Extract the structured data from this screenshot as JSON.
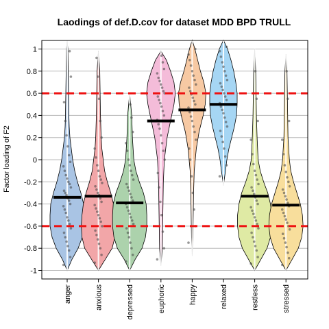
{
  "chart_data": {
    "type": "violin",
    "title": "Laodings of def.D.cov for dataset MDD BPD TRULL",
    "xlabel": "",
    "ylabel": "Factor loading of F2",
    "ylim": [
      -1.08,
      1.08
    ],
    "yticks": [
      -1,
      -0.8,
      -0.6,
      -0.4,
      -0.2,
      0,
      0.2,
      0.4,
      0.6,
      0.8,
      1
    ],
    "yticklabels": [
      "-1",
      "-0.8",
      "-0.6",
      "-0.4",
      "-0.2",
      "0",
      "0.2",
      "0.4",
      "0.6",
      "0.8",
      "1"
    ],
    "grid": true,
    "reference_lines": [
      0.6,
      -0.6
    ],
    "reference_line_color": "#ee1111",
    "categories": [
      "anger",
      "anxious",
      "depressed",
      "euphoric",
      "happy",
      "relaxed",
      "restless",
      "stressed"
    ],
    "colors": [
      "#a9c4e4",
      "#f2a6a8",
      "#acd2ac",
      "#f4bcd9",
      "#f7c9a3",
      "#a6d6f4",
      "#dfeaa4",
      "#f8de9c"
    ],
    "means": [
      -0.34,
      -0.33,
      -0.39,
      0.35,
      0.45,
      0.5,
      -0.33,
      -0.41
    ],
    "ranges": [
      [
        -1.0,
        1.08
      ],
      [
        -1.0,
        0.98
      ],
      [
        -1.0,
        0.6
      ],
      [
        -0.96,
        0.98
      ],
      [
        -0.87,
        1.08
      ],
      [
        -0.23,
        1.08
      ],
      [
        -1.0,
        1.0
      ],
      [
        -1.0,
        0.95
      ]
    ],
    "density": [
      [
        [
          -1.0,
          0
        ],
        [
          -0.9,
          7
        ],
        [
          -0.8,
          16
        ],
        [
          -0.7,
          22
        ],
        [
          -0.6,
          25
        ],
        [
          -0.5,
          25
        ],
        [
          -0.4,
          24
        ],
        [
          -0.3,
          20
        ],
        [
          -0.2,
          15
        ],
        [
          -0.1,
          11
        ],
        [
          0.0,
          8
        ],
        [
          0.1,
          6
        ],
        [
          0.2,
          4
        ],
        [
          0.3,
          3
        ],
        [
          0.4,
          2.5
        ],
        [
          0.6,
          2
        ],
        [
          0.8,
          1.5
        ],
        [
          1.0,
          1
        ],
        [
          1.08,
          0
        ]
      ],
      [
        [
          -1.0,
          0
        ],
        [
          -0.9,
          10
        ],
        [
          -0.8,
          20
        ],
        [
          -0.7,
          24
        ],
        [
          -0.6,
          25
        ],
        [
          -0.5,
          24
        ],
        [
          -0.4,
          22
        ],
        [
          -0.3,
          18
        ],
        [
          -0.2,
          13
        ],
        [
          -0.1,
          9
        ],
        [
          0.0,
          7
        ],
        [
          0.1,
          5
        ],
        [
          0.2,
          4
        ],
        [
          0.4,
          3
        ],
        [
          0.6,
          2.5
        ],
        [
          0.8,
          2
        ],
        [
          0.98,
          0
        ]
      ],
      [
        [
          -1.0,
          0
        ],
        [
          -0.9,
          8
        ],
        [
          -0.8,
          18
        ],
        [
          -0.7,
          23
        ],
        [
          -0.6,
          25
        ],
        [
          -0.5,
          25
        ],
        [
          -0.4,
          24
        ],
        [
          -0.3,
          20
        ],
        [
          -0.2,
          14
        ],
        [
          -0.1,
          9
        ],
        [
          0.0,
          6
        ],
        [
          0.2,
          4
        ],
        [
          0.4,
          3
        ],
        [
          0.6,
          0
        ]
      ],
      [
        [
          -0.96,
          0
        ],
        [
          -0.8,
          2
        ],
        [
          -0.6,
          2.5
        ],
        [
          -0.4,
          3
        ],
        [
          -0.2,
          3.5
        ],
        [
          0.0,
          5
        ],
        [
          0.2,
          9
        ],
        [
          0.35,
          14
        ],
        [
          0.5,
          19
        ],
        [
          0.6,
          21
        ],
        [
          0.7,
          19
        ],
        [
          0.8,
          14
        ],
        [
          0.9,
          8
        ],
        [
          0.98,
          0
        ]
      ],
      [
        [
          -0.87,
          0
        ],
        [
          -0.7,
          1
        ],
        [
          -0.5,
          1.5
        ],
        [
          -0.3,
          2
        ],
        [
          -0.1,
          3
        ],
        [
          0.1,
          6
        ],
        [
          0.25,
          10
        ],
        [
          0.4,
          16
        ],
        [
          0.5,
          19
        ],
        [
          0.6,
          20
        ],
        [
          0.7,
          17
        ],
        [
          0.8,
          12
        ],
        [
          0.9,
          8
        ],
        [
          1.0,
          4
        ],
        [
          1.08,
          0
        ]
      ],
      [
        [
          -0.23,
          0
        ],
        [
          -0.1,
          3
        ],
        [
          0.0,
          5
        ],
        [
          0.1,
          8
        ],
        [
          0.2,
          12
        ],
        [
          0.3,
          16
        ],
        [
          0.4,
          19
        ],
        [
          0.5,
          20
        ],
        [
          0.6,
          20
        ],
        [
          0.7,
          18
        ],
        [
          0.8,
          15
        ],
        [
          0.9,
          11
        ],
        [
          1.0,
          6
        ],
        [
          1.08,
          0
        ]
      ],
      [
        [
          -1.0,
          0
        ],
        [
          -0.9,
          9
        ],
        [
          -0.8,
          18
        ],
        [
          -0.7,
          23
        ],
        [
          -0.6,
          25
        ],
        [
          -0.5,
          25
        ],
        [
          -0.4,
          23
        ],
        [
          -0.3,
          19
        ],
        [
          -0.2,
          13
        ],
        [
          -0.1,
          8
        ],
        [
          0.0,
          5
        ],
        [
          0.2,
          3.5
        ],
        [
          0.4,
          2.5
        ],
        [
          0.6,
          2
        ],
        [
          0.8,
          1.5
        ],
        [
          1.0,
          0
        ]
      ],
      [
        [
          -1.0,
          0
        ],
        [
          -0.9,
          9
        ],
        [
          -0.8,
          18
        ],
        [
          -0.7,
          23
        ],
        [
          -0.6,
          25
        ],
        [
          -0.5,
          24
        ],
        [
          -0.4,
          21
        ],
        [
          -0.3,
          16
        ],
        [
          -0.2,
          11
        ],
        [
          -0.1,
          7
        ],
        [
          0.0,
          5
        ],
        [
          0.2,
          3
        ],
        [
          0.4,
          2.5
        ],
        [
          0.6,
          2
        ],
        [
          0.8,
          1.5
        ],
        [
          0.95,
          0
        ]
      ]
    ],
    "points": [
      [
        -0.95,
        -0.88,
        -0.82,
        -0.78,
        -0.74,
        -0.7,
        -0.66,
        -0.62,
        -0.58,
        -0.55,
        -0.52,
        -0.48,
        -0.45,
        -0.42,
        -0.4,
        -0.37,
        -0.35,
        -0.32,
        -0.3,
        -0.28,
        -0.25,
        -0.22,
        -0.2,
        -0.17,
        -0.14,
        -0.1,
        -0.06,
        -0.02,
        0.04,
        0.12,
        0.22,
        0.35,
        0.52,
        0.75,
        0.98
      ],
      [
        -0.93,
        -0.86,
        -0.8,
        -0.76,
        -0.72,
        -0.68,
        -0.64,
        -0.6,
        -0.56,
        -0.53,
        -0.5,
        -0.47,
        -0.44,
        -0.41,
        -0.38,
        -0.35,
        -0.32,
        -0.3,
        -0.27,
        -0.24,
        -0.21,
        -0.18,
        -0.15,
        -0.1,
        -0.05,
        0.02,
        0.1,
        0.2,
        0.35,
        0.55,
        0.75,
        0.92
      ],
      [
        -0.92,
        -0.86,
        -0.8,
        -0.75,
        -0.7,
        -0.66,
        -0.62,
        -0.58,
        -0.55,
        -0.52,
        -0.49,
        -0.46,
        -0.43,
        -0.4,
        -0.37,
        -0.34,
        -0.31,
        -0.28,
        -0.25,
        -0.22,
        -0.18,
        -0.14,
        -0.1,
        -0.05,
        0.0,
        0.08,
        0.15,
        0.25,
        0.38,
        0.5
      ],
      [
        -0.9,
        -0.8,
        -0.65,
        -0.5,
        -0.38,
        -0.25,
        -0.12,
        0.0,
        0.08,
        0.15,
        0.22,
        0.28,
        0.32,
        0.36,
        0.4,
        0.44,
        0.48,
        0.51,
        0.54,
        0.57,
        0.6,
        0.62,
        0.65,
        0.68,
        0.71,
        0.74,
        0.78,
        0.82,
        0.88,
        0.94
      ],
      [
        -0.75,
        -0.6,
        -0.45,
        -0.3,
        -0.15,
        0.0,
        0.1,
        0.18,
        0.25,
        0.3,
        0.35,
        0.39,
        0.43,
        0.47,
        0.5,
        0.53,
        0.56,
        0.59,
        0.62,
        0.65,
        0.68,
        0.72,
        0.76,
        0.8,
        0.85,
        0.9,
        0.95,
        1.0
      ],
      [
        -0.15,
        -0.05,
        0.03,
        0.1,
        0.16,
        0.21,
        0.26,
        0.3,
        0.34,
        0.38,
        0.42,
        0.45,
        0.48,
        0.51,
        0.54,
        0.57,
        0.6,
        0.63,
        0.66,
        0.69,
        0.72,
        0.76,
        0.8,
        0.84,
        0.88,
        0.93,
        0.98,
        1.02
      ],
      [
        -0.94,
        -0.88,
        -0.82,
        -0.78,
        -0.74,
        -0.7,
        -0.66,
        -0.62,
        -0.58,
        -0.55,
        -0.52,
        -0.49,
        -0.46,
        -0.43,
        -0.4,
        -0.37,
        -0.34,
        -0.31,
        -0.28,
        -0.25,
        -0.22,
        -0.18,
        -0.14,
        -0.1,
        -0.04,
        0.05,
        0.18,
        0.35,
        0.55,
        0.8
      ],
      [
        -0.95,
        -0.89,
        -0.84,
        -0.79,
        -0.75,
        -0.71,
        -0.67,
        -0.63,
        -0.6,
        -0.57,
        -0.54,
        -0.51,
        -0.48,
        -0.45,
        -0.42,
        -0.39,
        -0.36,
        -0.33,
        -0.3,
        -0.27,
        -0.24,
        -0.2,
        -0.16,
        -0.11,
        -0.05,
        0.05,
        0.18,
        0.35,
        0.55,
        0.8
      ]
    ]
  }
}
